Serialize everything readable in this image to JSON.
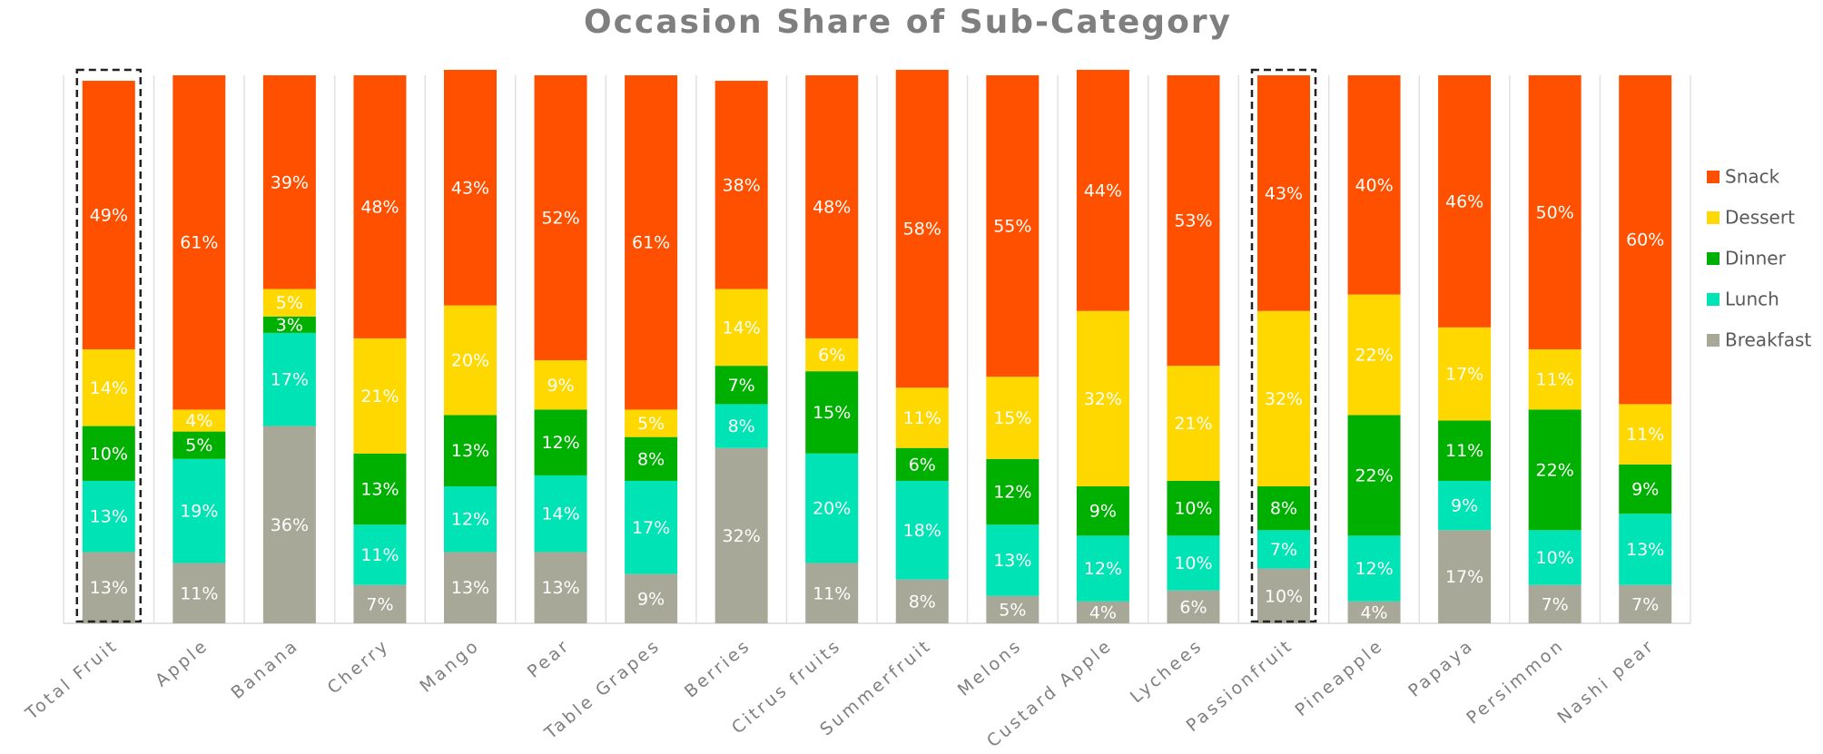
{
  "chart_data": {
    "type": "stacked_bar",
    "title": "Occasion Share of Sub-Category",
    "categories": [
      "Total Fruit",
      "Apple",
      "Banana",
      "Cherry",
      "Mango",
      "Pear",
      "Table Grapes",
      "Berries",
      "Citrus fruits",
      "Summerfruit",
      "Melons",
      "Custard Apple",
      "Lychees",
      "Passionfruit",
      "Pineapple",
      "Papaya",
      "Persimmon",
      "Nashi pear"
    ],
    "ylim": [
      0,
      100
    ],
    "legend": "right",
    "series": [
      {
        "name": "Breakfast",
        "color": "#a8a898",
        "values": [
          13,
          11,
          36,
          7,
          13,
          13,
          9,
          32,
          11,
          8,
          5,
          4,
          6,
          10,
          4,
          17,
          7,
          7
        ],
        "value_labels": [
          "13%",
          "11%",
          "36%",
          "7%",
          "13%",
          "13%",
          "9%",
          "32%",
          "11%",
          "8%",
          "5%",
          "4%",
          "6%",
          "10%",
          "4%",
          "17%",
          "7%",
          "7%"
        ]
      },
      {
        "name": "Lunch",
        "color": "#00e3b5",
        "values": [
          13,
          19,
          17,
          11,
          12,
          14,
          17,
          8,
          20,
          18,
          13,
          12,
          10,
          7,
          12,
          9,
          10,
          13
        ],
        "value_labels": [
          "13%",
          "19%",
          "17%",
          "11%",
          "12%",
          "14%",
          "17%",
          "8%",
          "20%",
          "18%",
          "13%",
          "12%",
          "10%",
          "7%",
          "12%",
          "9%",
          "10%",
          "13%"
        ]
      },
      {
        "name": "Dinner",
        "color": "#00b000",
        "values": [
          10,
          5,
          3,
          13,
          13,
          12,
          8,
          7,
          15,
          6,
          12,
          9,
          10,
          8,
          22,
          11,
          22,
          9
        ],
        "value_labels": [
          "10%",
          "5%",
          "3%",
          "13%",
          "13%",
          "12%",
          "8%",
          "7%",
          "15%",
          "6%",
          "12%",
          "9%",
          "10%",
          "8%",
          "22%",
          "11%",
          "22%",
          "9%"
        ]
      },
      {
        "name": "Dessert",
        "color": "#ffd800",
        "values": [
          14,
          4,
          5,
          21,
          20,
          9,
          5,
          14,
          6,
          11,
          15,
          32,
          21,
          32,
          22,
          17,
          11,
          11
        ],
        "value_labels": [
          "14%",
          "4%",
          "5%",
          "21%",
          "20%",
          "9%",
          "5%",
          "14%",
          "6%",
          "11%",
          "15%",
          "32%",
          "21%",
          "32%",
          "22%",
          "17%",
          "11%",
          "11%"
        ]
      },
      {
        "name": "Snack",
        "color": "#ff5000",
        "values": [
          49,
          61,
          39,
          48,
          43,
          52,
          61,
          38,
          48,
          58,
          55,
          44,
          53,
          43,
          40,
          46,
          50,
          60
        ],
        "value_labels": [
          "49%",
          "61%",
          "39%",
          "48%",
          "43%",
          "52%",
          "61%",
          "38%",
          "48%",
          "58%",
          "55%",
          "44%",
          "53%",
          "43%",
          "40%",
          "46%",
          "50%",
          "60%"
        ]
      }
    ]
  }
}
